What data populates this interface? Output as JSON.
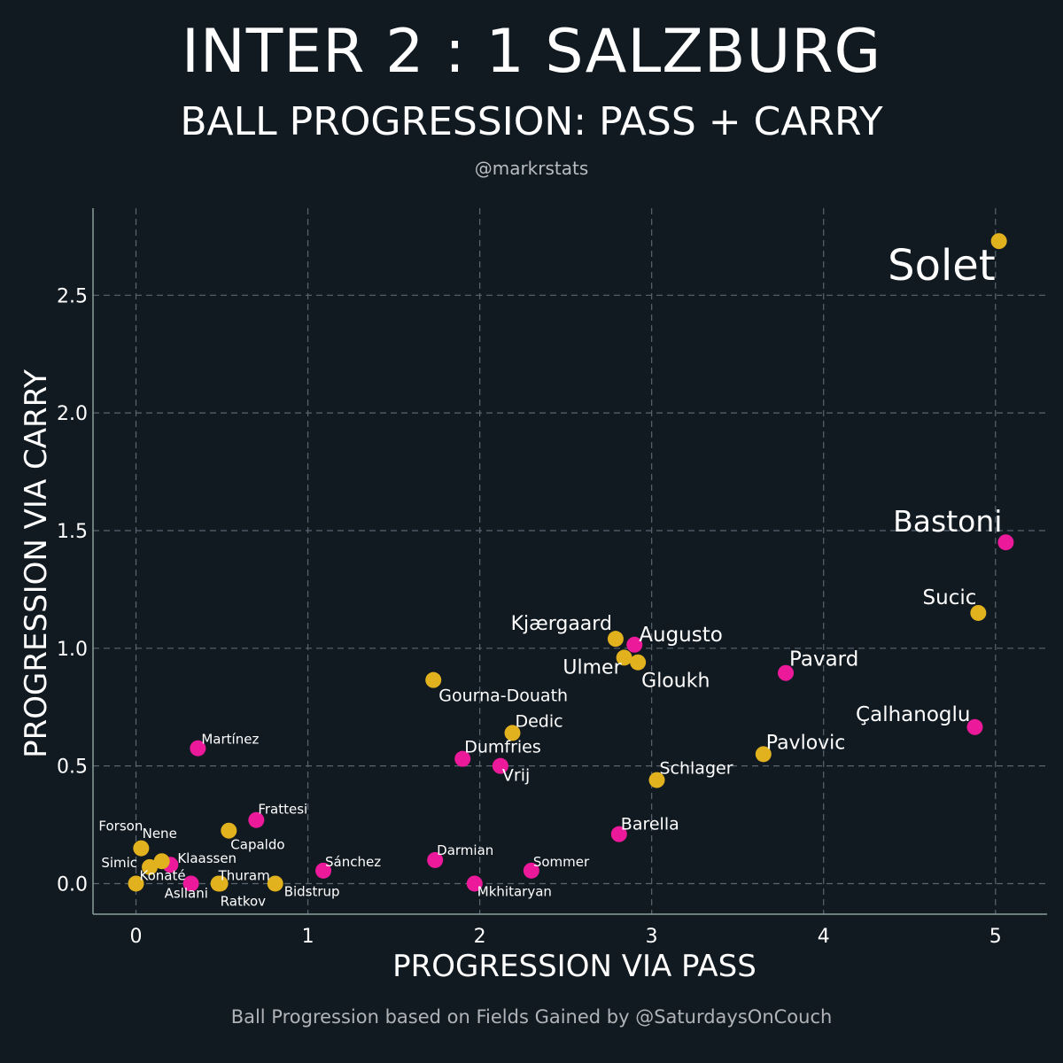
{
  "header": {
    "title": "INTER 2 : 1 SALZBURG",
    "subtitle": "BALL PROGRESSION: PASS + CARRY",
    "handle": "@markrstats"
  },
  "footer": {
    "credit": "Ball Progression based on Fields Gained by @SaturdaysOnCouch"
  },
  "colors": {
    "background": "#111921",
    "inter": "#ec1a9a",
    "salzburg": "#e2b11e",
    "grid": "#5a6570",
    "axis": "#8aa09a"
  },
  "chart_data": {
    "type": "scatter",
    "xlabel": "PROGRESSION VIA PASS",
    "ylabel": "PROGRESSION VIA CARRY",
    "xlim": [
      -0.25,
      5.3
    ],
    "ylim": [
      -0.13,
      2.87
    ],
    "xticks": [
      0,
      1,
      2,
      3,
      4,
      5
    ],
    "yticks": [
      0.0,
      0.5,
      1.0,
      1.5,
      2.0,
      2.5
    ],
    "xtick_labels": [
      "0",
      "1",
      "2",
      "3",
      "4",
      "5"
    ],
    "ytick_labels": [
      "0.0",
      "0.5",
      "1.0",
      "1.5",
      "2.0",
      "2.5"
    ],
    "grid": true,
    "series": [
      {
        "name": "Inter",
        "color": "#ec1a9a",
        "points": [
          {
            "label": "Bastoni",
            "x": 5.06,
            "y": 1.45,
            "size": "xl",
            "anchor": "left-up"
          },
          {
            "label": "Çalhanoglu",
            "x": 4.88,
            "y": 0.665,
            "size": "l",
            "anchor": "left-up"
          },
          {
            "label": "Pavard",
            "x": 3.78,
            "y": 0.895,
            "size": "l",
            "anchor": "right-up"
          },
          {
            "label": "Augusto",
            "x": 2.9,
            "y": 1.015,
            "size": "l",
            "anchor": "right-up"
          },
          {
            "label": "Barella",
            "x": 2.81,
            "y": 0.21,
            "size": "s",
            "anchor": "right-up"
          },
          {
            "label": "Vrij",
            "x": 2.12,
            "y": 0.5,
            "size": "s",
            "anchor": "right-down"
          },
          {
            "label": "Dumfries",
            "x": 1.9,
            "y": 0.53,
            "size": "s",
            "anchor": "right-up"
          },
          {
            "label": "Darmian",
            "x": 1.74,
            "y": 0.1,
            "size": "xs",
            "anchor": "right-up"
          },
          {
            "label": "Sommer",
            "x": 2.3,
            "y": 0.055,
            "size": "xs",
            "anchor": "right-up"
          },
          {
            "label": "Mkhitaryan",
            "x": 1.97,
            "y": 0.0,
            "size": "xs",
            "anchor": "right-down"
          },
          {
            "label": "Sánchez",
            "x": 1.09,
            "y": 0.055,
            "size": "xs",
            "anchor": "right-up"
          },
          {
            "label": "Frattesi",
            "x": 0.7,
            "y": 0.27,
            "size": "xs",
            "anchor": "right-up"
          },
          {
            "label": "Martínez",
            "x": 0.36,
            "y": 0.575,
            "size": "xs",
            "anchor": "right-up"
          },
          {
            "label": "Klaassen",
            "x": 0.2,
            "y": 0.08,
            "size": "xs",
            "anchor": "right-up"
          },
          {
            "label": "Asllani",
            "x": 0.32,
            "y": 0.0,
            "size": "xs",
            "anchor": "down"
          }
        ]
      },
      {
        "name": "Salzburg",
        "color": "#e2b11e",
        "points": [
          {
            "label": "Solet",
            "x": 5.02,
            "y": 2.73,
            "size": "xxl",
            "anchor": "left-down"
          },
          {
            "label": "Sucic",
            "x": 4.9,
            "y": 1.15,
            "size": "l",
            "anchor": "left-up"
          },
          {
            "label": "Pavlovic",
            "x": 3.65,
            "y": 0.55,
            "size": "m",
            "anchor": "right-up"
          },
          {
            "label": "Schlager",
            "x": 3.03,
            "y": 0.44,
            "size": "s",
            "anchor": "right-up"
          },
          {
            "label": "Kjærgaard",
            "x": 2.79,
            "y": 1.04,
            "size": "m",
            "anchor": "left-up"
          },
          {
            "label": "Ulmer",
            "x": 2.84,
            "y": 0.96,
            "size": "m",
            "anchor": "left-down"
          },
          {
            "label": "Gloukh",
            "x": 2.92,
            "y": 0.94,
            "size": "m",
            "anchor": "right-down"
          },
          {
            "label": "Gourna-Douath",
            "x": 1.73,
            "y": 0.865,
            "size": "s",
            "anchor": "right-down"
          },
          {
            "label": "Dedic",
            "x": 2.19,
            "y": 0.64,
            "size": "s",
            "anchor": "right-up"
          },
          {
            "label": "Capaldo",
            "x": 0.54,
            "y": 0.225,
            "size": "xs",
            "anchor": "right-down"
          },
          {
            "label": "Forson",
            "x": 0.03,
            "y": 0.15,
            "size": "xs",
            "anchor": "left-up"
          },
          {
            "label": "Nene",
            "x": 0.15,
            "y": 0.095,
            "size": "xs",
            "anchor": "nene"
          },
          {
            "label": "Simic",
            "x": 0.08,
            "y": 0.07,
            "size": "xs",
            "anchor": "left-up"
          },
          {
            "label": "Konaté",
            "x": 0.0,
            "y": 0.0,
            "size": "xs",
            "anchor": "right-up"
          },
          {
            "label": "Thuram",
            "x": 0.49,
            "y": 0.0,
            "size": "xs",
            "anchor": "right-up"
          },
          {
            "label": "Ratkov",
            "x": 0.48,
            "y": 0.0,
            "size": "xs",
            "anchor": "right-down2"
          },
          {
            "label": "Bidstrup",
            "x": 0.81,
            "y": 0.0,
            "size": "xs",
            "anchor": "right-down"
          }
        ]
      }
    ]
  }
}
